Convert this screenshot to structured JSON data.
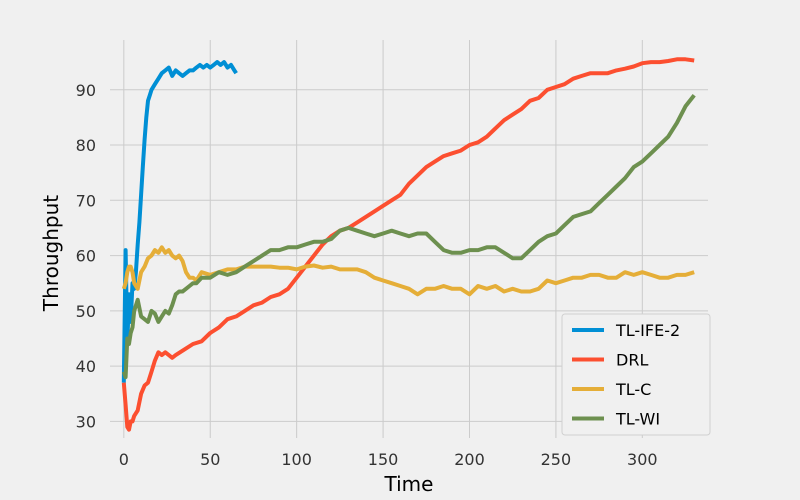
{
  "chart_data": {
    "type": "line",
    "title": "",
    "xlabel": "Time",
    "ylabel": "Throughput",
    "xlim": [
      -8,
      338
    ],
    "ylim": [
      27,
      99
    ],
    "x_ticks": [
      0,
      50,
      100,
      150,
      200,
      250,
      300
    ],
    "y_ticks": [
      30,
      40,
      50,
      60,
      70,
      80,
      90
    ],
    "x_tick_labels": [
      "0",
      "50",
      "100",
      "150",
      "200",
      "250",
      "300"
    ],
    "y_tick_labels": [
      "30",
      "40",
      "50",
      "60",
      "70",
      "80",
      "90"
    ],
    "grid": true,
    "legend_position": "lower-right",
    "series": [
      {
        "name": "TL-IFE-2",
        "color": "#008fd5",
        "x": [
          0,
          1,
          2,
          3,
          4,
          5,
          6,
          7,
          8,
          9,
          10,
          11,
          12,
          13,
          14,
          15,
          16,
          18,
          20,
          22,
          24,
          26,
          28,
          30,
          32,
          34,
          36,
          38,
          40,
          42,
          44,
          46,
          48,
          50,
          52,
          54,
          56,
          58,
          60,
          62,
          64,
          65
        ],
        "y": [
          37,
          61,
          44,
          53,
          48,
          55,
          54,
          57,
          62,
          66,
          71,
          76,
          81,
          85,
          88,
          89,
          90,
          91,
          92,
          93,
          93.5,
          94,
          92.5,
          93.5,
          93,
          92.5,
          93,
          93.5,
          93.5,
          94,
          94.5,
          94,
          94.5,
          94,
          94.5,
          95,
          94.5,
          95,
          94,
          94.5,
          93.5,
          93
        ]
      },
      {
        "name": "DRL",
        "color": "#fc4f30",
        "x": [
          0,
          1,
          2,
          3,
          4,
          5,
          6,
          8,
          10,
          12,
          14,
          16,
          18,
          20,
          22,
          24,
          26,
          28,
          30,
          35,
          40,
          45,
          50,
          55,
          60,
          65,
          70,
          75,
          80,
          85,
          90,
          95,
          100,
          105,
          110,
          115,
          120,
          125,
          130,
          135,
          140,
          145,
          150,
          155,
          160,
          165,
          170,
          175,
          180,
          185,
          190,
          195,
          200,
          205,
          210,
          215,
          220,
          225,
          230,
          235,
          240,
          245,
          250,
          255,
          260,
          265,
          270,
          275,
          280,
          285,
          290,
          295,
          300,
          305,
          310,
          315,
          320,
          325,
          330
        ],
        "y": [
          37,
          33,
          29,
          28.5,
          30,
          30,
          31,
          32,
          35,
          36.5,
          37,
          39,
          41,
          42.5,
          42,
          42.5,
          42,
          41.5,
          42,
          43,
          44,
          44.5,
          46,
          47,
          48.5,
          49,
          50,
          51,
          51.5,
          52.5,
          53,
          54,
          56,
          58,
          60,
          62,
          63.5,
          64.5,
          65,
          66,
          67,
          68,
          69,
          70,
          71,
          73,
          74.5,
          76,
          77,
          78,
          78.5,
          79,
          80,
          80.5,
          81.5,
          83,
          84.5,
          85.5,
          86.5,
          88,
          88.5,
          90,
          90.5,
          91,
          92,
          92.5,
          93,
          93,
          93,
          93.5,
          93.8,
          94.2,
          94.8,
          95,
          95,
          95.2,
          95.5,
          95.5,
          95.3
        ]
      },
      {
        "name": "TL-C",
        "color": "#e5ae38",
        "x": [
          0,
          1,
          2,
          3,
          4,
          5,
          6,
          8,
          10,
          12,
          14,
          16,
          18,
          20,
          22,
          24,
          26,
          28,
          30,
          32,
          34,
          36,
          38,
          40,
          42,
          45,
          50,
          55,
          60,
          65,
          70,
          75,
          80,
          85,
          90,
          95,
          100,
          105,
          110,
          115,
          120,
          125,
          130,
          135,
          140,
          145,
          150,
          155,
          160,
          165,
          170,
          175,
          180,
          185,
          190,
          195,
          200,
          205,
          210,
          215,
          220,
          225,
          230,
          235,
          240,
          245,
          250,
          255,
          260,
          265,
          270,
          275,
          280,
          285,
          290,
          295,
          300,
          305,
          310,
          315,
          320,
          325,
          330
        ],
        "y": [
          54,
          55,
          57,
          58,
          58,
          57,
          55,
          54,
          57,
          58,
          59.5,
          60,
          61,
          60.5,
          61.5,
          60.5,
          61,
          60,
          59.5,
          60,
          59,
          57,
          56,
          56,
          55.5,
          57,
          56.5,
          57,
          57.5,
          57.5,
          58,
          58,
          58,
          58,
          57.8,
          57.8,
          57.5,
          58,
          58.2,
          57.8,
          58,
          57.5,
          57.5,
          57.5,
          57,
          56,
          55.5,
          55,
          54.5,
          54,
          53,
          54,
          54,
          54.5,
          54,
          54,
          53,
          54.5,
          54,
          54.5,
          53.5,
          54,
          53.5,
          53.5,
          54,
          55.5,
          55,
          55.5,
          56,
          56,
          56.5,
          56.5,
          56,
          56,
          57,
          56.5,
          57,
          56.5,
          56,
          56,
          56.5,
          56.5,
          57
        ]
      },
      {
        "name": "TL-WI",
        "color": "#6d904f",
        "x": [
          0,
          1,
          2,
          3,
          4,
          5,
          6,
          8,
          10,
          12,
          14,
          16,
          18,
          20,
          22,
          24,
          26,
          28,
          30,
          32,
          34,
          36,
          38,
          40,
          42,
          45,
          50,
          55,
          60,
          65,
          70,
          75,
          80,
          85,
          90,
          95,
          100,
          105,
          110,
          115,
          120,
          125,
          130,
          135,
          140,
          145,
          150,
          155,
          160,
          165,
          170,
          175,
          180,
          185,
          190,
          195,
          200,
          205,
          210,
          215,
          220,
          225,
          230,
          235,
          240,
          245,
          250,
          255,
          260,
          265,
          270,
          275,
          280,
          285,
          290,
          295,
          300,
          305,
          310,
          315,
          320,
          325,
          330
        ],
        "y": [
          39,
          38,
          45,
          44,
          46,
          47,
          50,
          52,
          49,
          48.5,
          48,
          50,
          49.5,
          48,
          49,
          50,
          49.5,
          51,
          53,
          53.5,
          53.5,
          54,
          54.5,
          55,
          55,
          56,
          56,
          57,
          56.5,
          57,
          58,
          59,
          60,
          61,
          61,
          61.5,
          61.5,
          62,
          62.5,
          62.5,
          63,
          64.5,
          65,
          64.5,
          64,
          63.5,
          64,
          64.5,
          64,
          63.5,
          64,
          64,
          62.5,
          61,
          60.5,
          60.5,
          61,
          61,
          61.5,
          61.5,
          60.5,
          59.5,
          59.5,
          61,
          62.5,
          63.5,
          64,
          65.5,
          67,
          67.5,
          68,
          69.5,
          71,
          72.5,
          74,
          76,
          77,
          78.5,
          80,
          81.5,
          84,
          87,
          89
        ]
      }
    ]
  }
}
